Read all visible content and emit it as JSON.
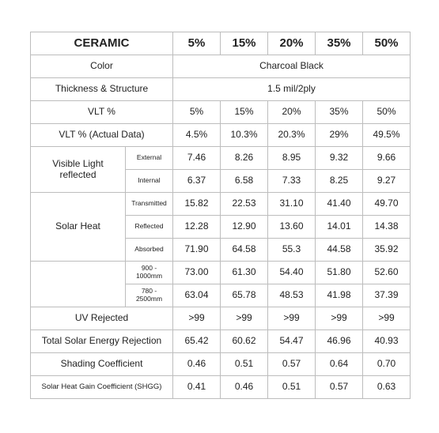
{
  "header": {
    "title": "CERAMIC",
    "columns": [
      "5%",
      "15%",
      "20%",
      "35%",
      "50%"
    ]
  },
  "rows": [
    {
      "label": "Color",
      "value": "Charcoal Black"
    },
    {
      "label": "Thickness & Structure",
      "value": "1.5 mil/2ply"
    },
    {
      "label": "VLT %",
      "values": [
        "5%",
        "15%",
        "20%",
        "35%",
        "50%"
      ]
    },
    {
      "label": "VLT % (Actual Data)",
      "values": [
        "4.5%",
        "10.3%",
        "20.3%",
        "29%",
        "49.5%"
      ]
    },
    {
      "label": "Visible Light reflected",
      "sub": [
        {
          "label": "External",
          "values": [
            "7.46",
            "8.26",
            "8.95",
            "9.32",
            "9.66"
          ]
        },
        {
          "label": "Internal",
          "values": [
            "6.37",
            "6.58",
            "7.33",
            "8.25",
            "9.27"
          ]
        }
      ]
    },
    {
      "label": "Solar Heat",
      "sub": [
        {
          "label": "Transmitted",
          "values": [
            "15.82",
            "22.53",
            "31.10",
            "41.40",
            "49.70"
          ]
        },
        {
          "label": "Reflected",
          "values": [
            "12.28",
            "12.90",
            "13.60",
            "14.01",
            "14.38"
          ]
        },
        {
          "label": "Absorbed",
          "values": [
            "71.90",
            "64.58",
            "55.3",
            "44.58",
            "35.92"
          ]
        }
      ]
    },
    {
      "sub": [
        {
          "label": "900 - 1000mm",
          "values": [
            "73.00",
            "61.30",
            "54.40",
            "51.80",
            "52.60"
          ]
        },
        {
          "label": "780 - 2500mm",
          "values": [
            "63.04",
            "65.78",
            "48.53",
            "41.98",
            "37.39"
          ]
        }
      ]
    },
    {
      "label": "UV Rejected",
      "values": [
        ">99",
        ">99",
        ">99",
        ">99",
        ">99"
      ]
    },
    {
      "label": "Total Solar Energy Rejection",
      "values": [
        "65.42",
        "60.62",
        "54.47",
        "46.96",
        "40.93"
      ]
    },
    {
      "label": "Shading Coefficient",
      "values": [
        "0.46",
        "0.51",
        "0.57",
        "0.64",
        "0.70"
      ]
    },
    {
      "label": "Solar Heat Gain Coefficient (SHGG)",
      "values": [
        "0.41",
        "0.46",
        "0.51",
        "0.57",
        "0.63"
      ]
    }
  ]
}
